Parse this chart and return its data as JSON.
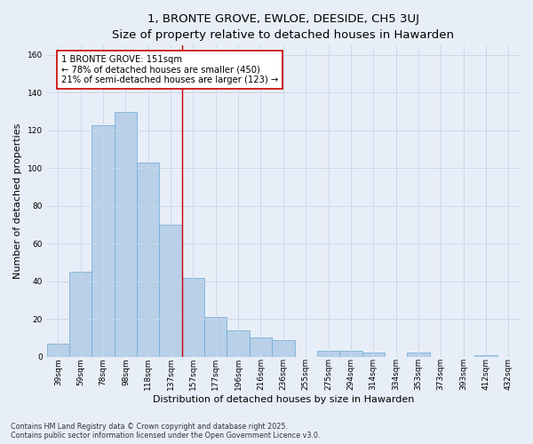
{
  "title": "1, BRONTE GROVE, EWLOE, DEESIDE, CH5 3UJ",
  "subtitle": "Size of property relative to detached houses in Hawarden",
  "xlabel": "Distribution of detached houses by size in Hawarden",
  "ylabel": "Number of detached properties",
  "categories": [
    "39sqm",
    "59sqm",
    "78sqm",
    "98sqm",
    "118sqm",
    "137sqm",
    "157sqm",
    "177sqm",
    "196sqm",
    "216sqm",
    "236sqm",
    "255sqm",
    "275sqm",
    "294sqm",
    "314sqm",
    "334sqm",
    "353sqm",
    "373sqm",
    "393sqm",
    "412sqm",
    "432sqm"
  ],
  "values": [
    7,
    45,
    123,
    130,
    103,
    70,
    42,
    21,
    14,
    10,
    9,
    0,
    3,
    3,
    2,
    0,
    2,
    0,
    0,
    1,
    0
  ],
  "bar_color": "#b8d0e8",
  "bar_edge_color": "#6aaad4",
  "vline_x": 5.5,
  "vline_color": "#cc0000",
  "annotation_text": "1 BRONTE GROVE: 151sqm\n← 78% of detached houses are smaller (450)\n21% of semi-detached houses are larger (123) →",
  "annotation_box_color": "#ffffff",
  "annotation_box_edge_color": "#cc0000",
  "ylim": [
    0,
    165
  ],
  "yticks": [
    0,
    20,
    40,
    60,
    80,
    100,
    120,
    140,
    160
  ],
  "grid_color": "#c8d4e8",
  "background_color": "#e8eef8",
  "footer": "Contains HM Land Registry data © Crown copyright and database right 2025.\nContains public sector information licensed under the Open Government Licence v3.0.",
  "title_fontsize": 9.5,
  "subtitle_fontsize": 8.5,
  "tick_fontsize": 6.5,
  "label_fontsize": 8,
  "footer_fontsize": 5.8,
  "annotation_fontsize": 7.2
}
